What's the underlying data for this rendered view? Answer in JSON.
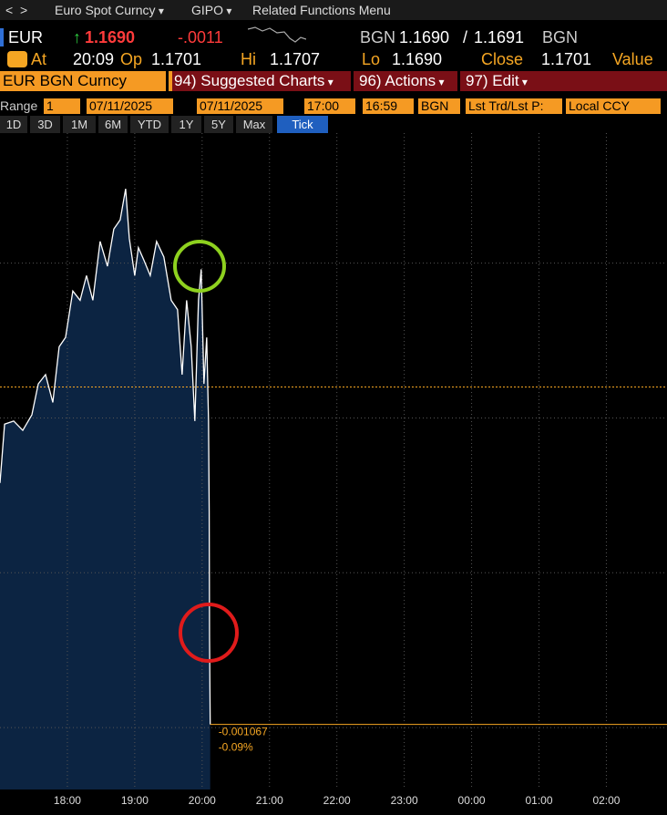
{
  "toolbar": {
    "security": "Euro Spot Curncy",
    "function": "GIPO",
    "menu": "Related Functions Menu"
  },
  "quote": {
    "ticker": "EUR",
    "last": "1.1690",
    "change": "-.0011",
    "source": "BGN",
    "bid": "1.1690",
    "ask": "1.1691",
    "source_right": "BGN"
  },
  "stats": [
    {
      "label": "At",
      "value": "20:09"
    },
    {
      "label": "Op",
      "value": "1.1701"
    },
    {
      "label": "Hi",
      "value": "1.1707"
    },
    {
      "label": "Lo",
      "value": "1.1690"
    },
    {
      "label": "Close",
      "value": "1.1701"
    },
    {
      "label": "Value"
    }
  ],
  "menu_bar": {
    "security": "EUR BGN Curncy",
    "items": [
      "94) Suggested Charts",
      "96) Actions",
      "97) Edit"
    ]
  },
  "range_bar": {
    "label": "Range",
    "fields": [
      "1",
      "07/11/2025",
      "07/11/2025",
      "17:00",
      "16:59",
      "BGN",
      "Lst Trd/Lst P:",
      "Local CCY"
    ]
  },
  "periods": [
    {
      "label": "1D"
    },
    {
      "label": "3D"
    },
    {
      "label": "1M"
    },
    {
      "label": "6M"
    },
    {
      "label": "YTD"
    },
    {
      "label": "1Y"
    },
    {
      "label": "5Y"
    },
    {
      "label": "Max"
    },
    {
      "label": "Tick",
      "active": true
    }
  ],
  "chart_data": {
    "type": "line",
    "color": "#ffffff",
    "fill": "#0c2442",
    "x": [
      17.0,
      17.068,
      17.203,
      17.338,
      17.473,
      17.568,
      17.676,
      17.784,
      17.878,
      17.973,
      18.081,
      18.189,
      18.284,
      18.378,
      18.486,
      18.595,
      18.689,
      18.784,
      18.865,
      18.919,
      19.0,
      19.054,
      19.135,
      19.23,
      19.324,
      19.432,
      19.541,
      19.635,
      19.703,
      19.77,
      19.838,
      19.892,
      19.946,
      19.986,
      20.027,
      20.068,
      20.095,
      20.105,
      20.11,
      20.12
    ],
    "values": [
      1.16979,
      1.16998,
      1.16999,
      1.16996,
      1.17001,
      1.17011,
      1.17014,
      1.17005,
      1.17023,
      1.17026,
      1.17041,
      1.17038,
      1.17046,
      1.17038,
      1.17057,
      1.17049,
      1.17061,
      1.17064,
      1.17074,
      1.17058,
      1.17046,
      1.17055,
      1.17051,
      1.17046,
      1.17057,
      1.17052,
      1.17038,
      1.17035,
      1.17014,
      1.17038,
      1.17023,
      1.16999,
      1.17038,
      1.17048,
      1.17011,
      1.17026,
      1.16999,
      1.1697,
      1.16929,
      1.16901
    ],
    "xlim": [
      17,
      26.9
    ],
    "ylim": [
      1.1688,
      1.17092
    ],
    "xticks": [
      {
        "value": 18,
        "label": "18:00"
      },
      {
        "value": 19,
        "label": "19:00"
      },
      {
        "value": 20,
        "label": "20:00"
      },
      {
        "value": 21,
        "label": "21:00"
      },
      {
        "value": 22,
        "label": "22:00"
      },
      {
        "value": 23,
        "label": "23:00"
      },
      {
        "value": 24,
        "label": "00:00"
      },
      {
        "value": 25,
        "label": "01:00"
      },
      {
        "value": 26,
        "label": "02:00"
      }
    ],
    "ygrid": [
      1.169,
      1.1695,
      1.17,
      1.1705
    ],
    "grid": true,
    "close_line": 1.1701,
    "annotations": [
      "-0.001067",
      "-0.09%"
    ]
  }
}
